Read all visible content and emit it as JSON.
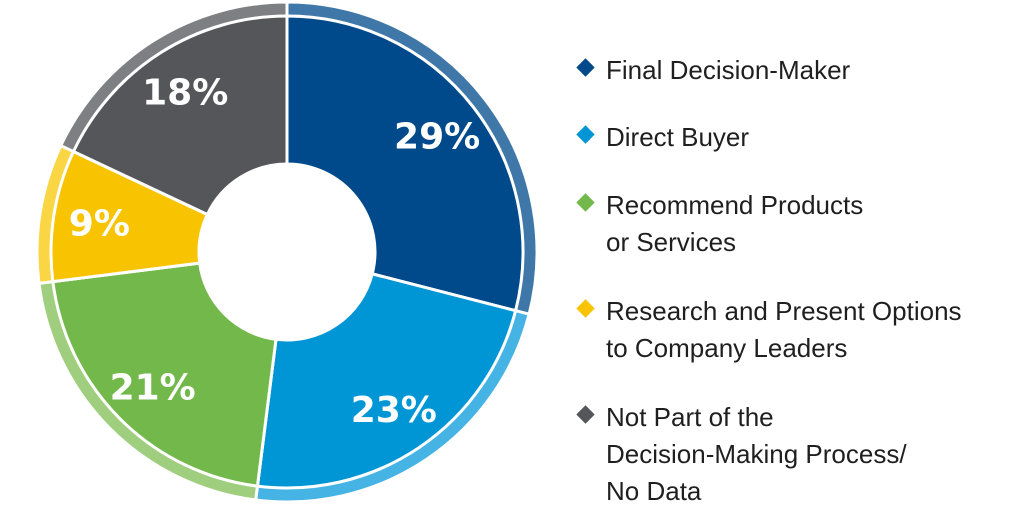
{
  "chart_data": {
    "type": "pie",
    "variant": "donut",
    "title": "",
    "slices": [
      {
        "label": "Final Decision-Maker",
        "value": 29,
        "value_label": "29%",
        "color": "#004A8B",
        "rim_color": "#3F78A8"
      },
      {
        "label": "Direct Buyer",
        "value": 23,
        "value_label": "23%",
        "color": "#0096D6",
        "rim_color": "#45B3E3"
      },
      {
        "label": "Recommend Products\nor Services",
        "value": 21,
        "value_label": "21%",
        "color": "#72B84A",
        "rim_color": "#9FCF7E"
      },
      {
        "label": "Research and Present Options\nto Company Leaders",
        "value": 9,
        "value_label": "9%",
        "color": "#F8C300",
        "rim_color": "#FAD544"
      },
      {
        "label": "Not Part of the\nDecision-Making Process/\nNo Data",
        "value": 18,
        "value_label": "18%",
        "color": "#55565A",
        "rim_color": "#7E7F83"
      }
    ],
    "legend_position": "right"
  }
}
